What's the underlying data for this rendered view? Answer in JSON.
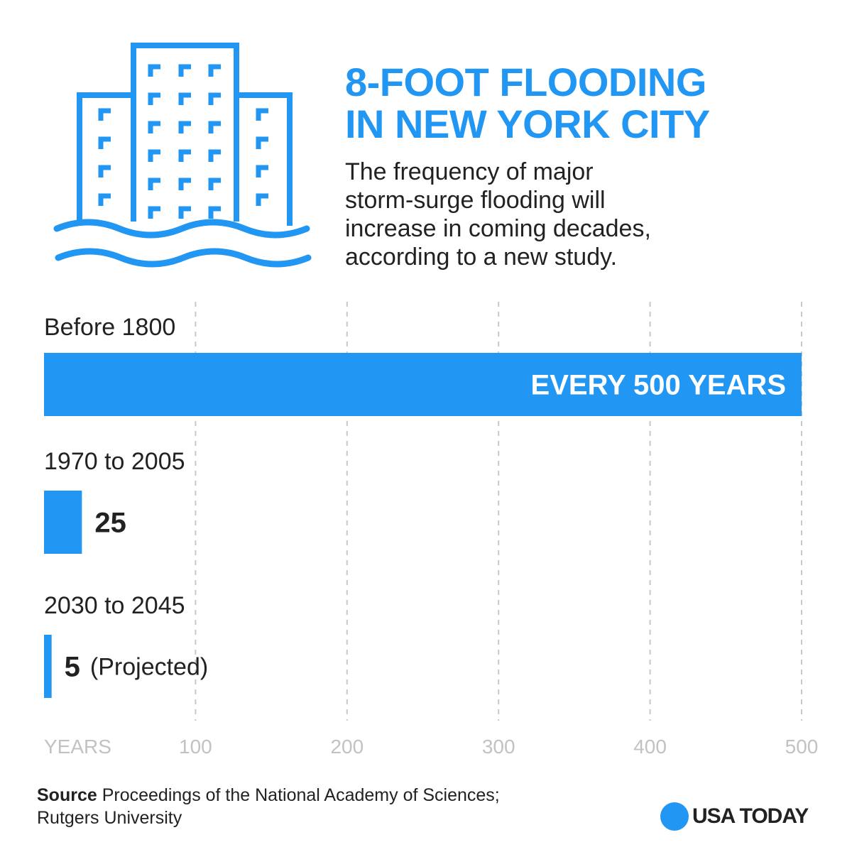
{
  "header": {
    "title_line1": "8-FOOT FLOODING",
    "title_line2": "IN NEW YORK CITY",
    "subtitle_lines": [
      "The frequency of major",
      "storm-surge flooding will",
      "increase in coming decades,",
      "according to a new study."
    ],
    "icon": "flooded-buildings-icon"
  },
  "colors": {
    "accent": "#2196f3",
    "text": "#222222",
    "axis": "#c2c2c2",
    "grid": "#c8c8c8"
  },
  "chart_data": {
    "type": "bar",
    "orientation": "horizontal",
    "title": "8-FOOT FLOODING IN NEW YORK CITY",
    "xlabel": "YEARS",
    "xlim": [
      0,
      500
    ],
    "x_ticks": [
      100,
      200,
      300,
      400,
      500
    ],
    "gridlines": "vertical dashed",
    "categories": [
      "Before 1800",
      "1970 to 2005",
      "2030 to 2045"
    ],
    "values": [
      500,
      25,
      5
    ],
    "value_labels": [
      "EVERY 500 YEARS",
      "25",
      "5"
    ],
    "annotations": [
      "",
      "",
      "(Projected)"
    ]
  },
  "footer": {
    "source_label": "Source",
    "source_line1": " Proceedings of the National Academy of Sciences;",
    "source_line2": "Rutgers University",
    "logo_text": "USA TODAY"
  }
}
